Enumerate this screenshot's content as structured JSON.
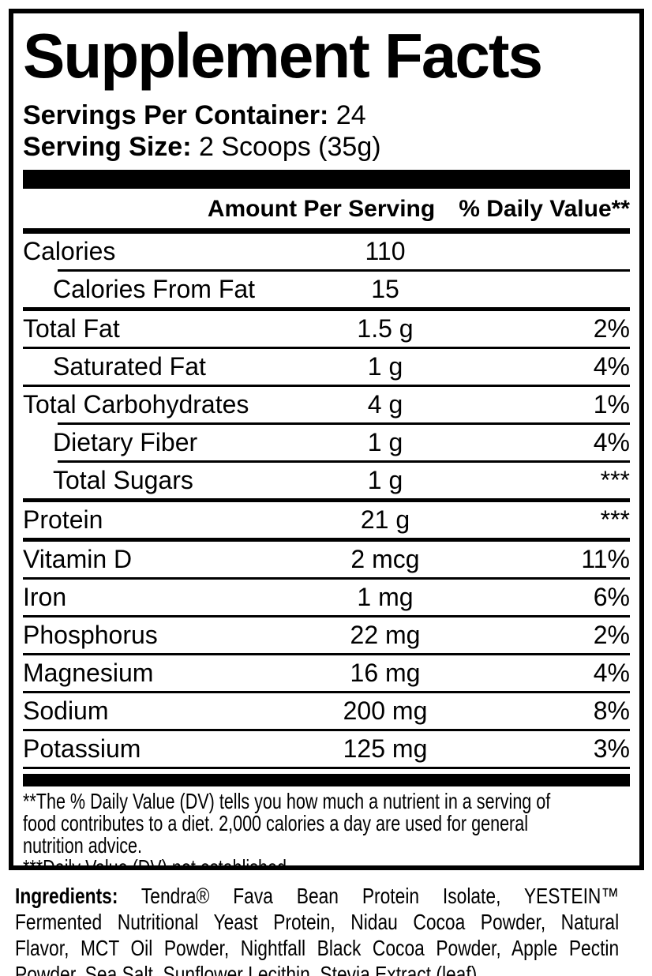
{
  "panel": {
    "title": "Supplement Facts",
    "servings_per_container": {
      "label": "Servings Per Container:",
      "value": "24"
    },
    "serving_size": {
      "label": "Serving Size:",
      "value": "2 Scoops (35g)"
    },
    "columns": {
      "amount": "Amount Per Serving",
      "daily_value": "% Daily Value**"
    },
    "rows": [
      {
        "name": "Calories",
        "amount": "110",
        "dv": "",
        "indent": false,
        "sep": "indented"
      },
      {
        "name": "Calories From Fat",
        "amount": "15",
        "dv": "",
        "indent": true,
        "sep": "thick"
      },
      {
        "name": "Total Fat",
        "amount": "1.5 g",
        "dv": "2%",
        "indent": false,
        "sep": "normal"
      },
      {
        "name": "Saturated Fat",
        "amount": "1 g",
        "dv": "4%",
        "indent": true,
        "sep": "normal"
      },
      {
        "name": "Total Carbohydrates",
        "amount": "4 g",
        "dv": "1%",
        "indent": false,
        "sep": "indented"
      },
      {
        "name": "Dietary Fiber",
        "amount": "1 g",
        "dv": "4%",
        "indent": true,
        "sep": "indented"
      },
      {
        "name": "Total Sugars",
        "amount": "1 g",
        "dv": "***",
        "indent": true,
        "sep": "thick"
      },
      {
        "name": "Protein",
        "amount": "21 g",
        "dv": "***",
        "indent": false,
        "sep": "thick"
      },
      {
        "name": "Vitamin D",
        "amount": "2 mcg",
        "dv": "11%",
        "indent": false,
        "sep": "normal"
      },
      {
        "name": "Iron",
        "amount": "1 mg",
        "dv": "6%",
        "indent": false,
        "sep": "normal"
      },
      {
        "name": "Phosphorus",
        "amount": "22 mg",
        "dv": "2%",
        "indent": false,
        "sep": "normal"
      },
      {
        "name": "Magnesium",
        "amount": "16 mg",
        "dv": "4%",
        "indent": false,
        "sep": "normal"
      },
      {
        "name": "Sodium",
        "amount": "200 mg",
        "dv": "8%",
        "indent": false,
        "sep": "normal"
      },
      {
        "name": "Potassium",
        "amount": "125 mg",
        "dv": "3%",
        "indent": false,
        "sep": "normal"
      }
    ],
    "footnotes": {
      "daily_value": "**The % Daily Value (DV) tells you how much a nutrient in a serving of\nfood contributes to a diet. 2,000 calories a day are used for general\nnutrition advice.",
      "not_established": "***Daily Value (DV) not established."
    }
  },
  "ingredients": {
    "label": "Ingredients:",
    "line1_rest": "Tendra® Fava Bean Protein Isolate, YESTEIN™",
    "line2": "Fermented Nutritional Yeast Protein, Nidau Cocoa Powder, Natural",
    "line3": "Flavor, MCT Oil Powder, Nightfall Black Cocoa Powder, Apple Pectin",
    "line4": "Powder, Sea Salt, Sunflower Lecithin, Stevia Extract (leaf)."
  },
  "colors": {
    "ink": "#000000",
    "background": "#ffffff"
  }
}
